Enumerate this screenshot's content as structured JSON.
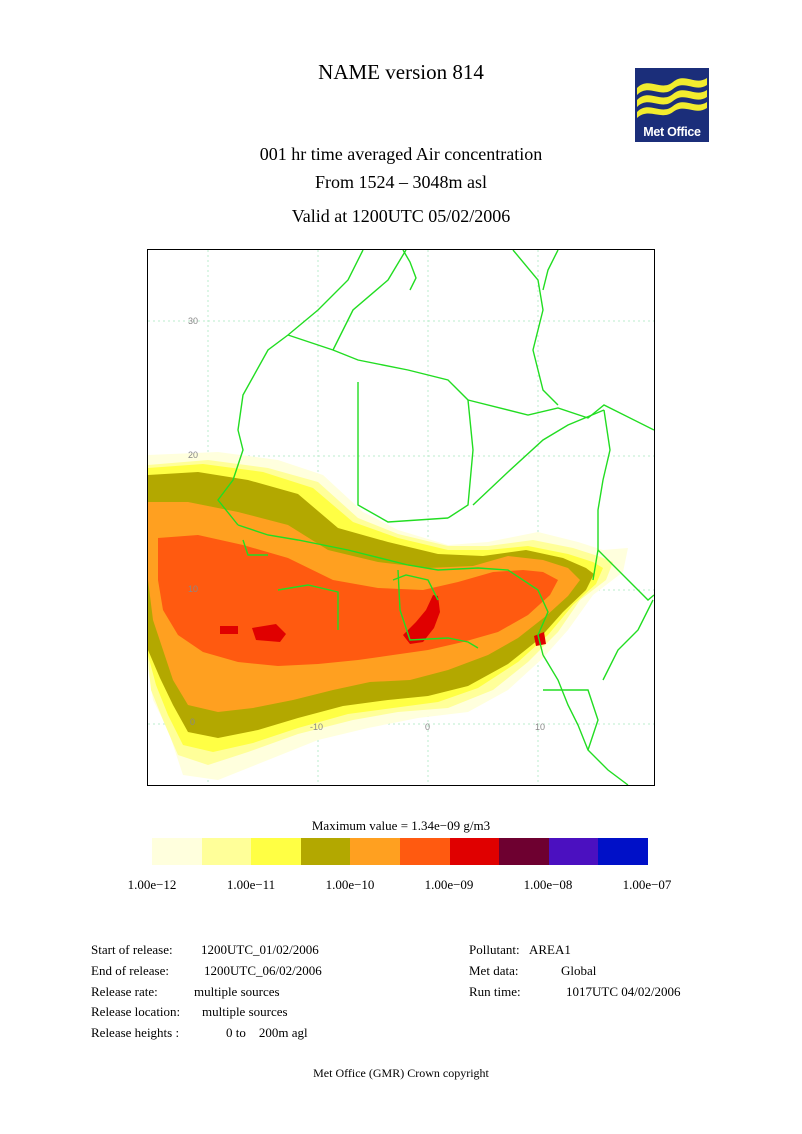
{
  "title": "NAME version 814",
  "logo": {
    "text": "Met Office",
    "colors": {
      "background": "#1b2e7a",
      "waves": "#f2ec2e"
    }
  },
  "header": {
    "line1": "001 hr time averaged   Air concentration",
    "line2": "From  1524 –  3048m asl",
    "line3": "Valid at 1200UTC 05/02/2006"
  },
  "map": {
    "grid_labels": {
      "lat_30": "30",
      "lat_20": "20",
      "lat_10": "10",
      "lat_0": "0",
      "lon_m10": "-10",
      "lon_0": "0",
      "lon_10": "10"
    },
    "colors": {
      "borders": "#22dd22",
      "grid": "#bbeecc"
    }
  },
  "legend": {
    "max_label": "Maximum value = 1.34e−09 g/m3",
    "colors": [
      "#ffffdd",
      "#ffff99",
      "#ffff44",
      "#b3a800",
      "#ffa020",
      "#ff5a10",
      "#e00000",
      "#6e0030",
      "#4b10c0",
      "#0010c8"
    ],
    "ticks": [
      "1.00e−12",
      "1.00e−11",
      "1.00e−10",
      "1.00e−09",
      "1.00e−08",
      "1.00e−07"
    ]
  },
  "info_left": {
    "start_label": "Start of release:",
    "start_value": "1200UTC_01/02/2006",
    "end_label": "End of release:",
    "end_value": "1200UTC_06/02/2006",
    "rate_label": "Release rate:",
    "rate_value": "multiple sources",
    "location_label": "Release location:",
    "location_value": "multiple sources",
    "heights_label": "Release heights :",
    "heights_value": "0 to    200m agl"
  },
  "info_right": {
    "pollutant_label": "Pollutant:",
    "pollutant_value": "AREA1",
    "met_label": "Met data:",
    "met_value": "Global",
    "run_label": "Run time:",
    "run_value": "1017UTC 04/02/2006"
  },
  "footer": "Met Office (GMR)  Crown copyright"
}
